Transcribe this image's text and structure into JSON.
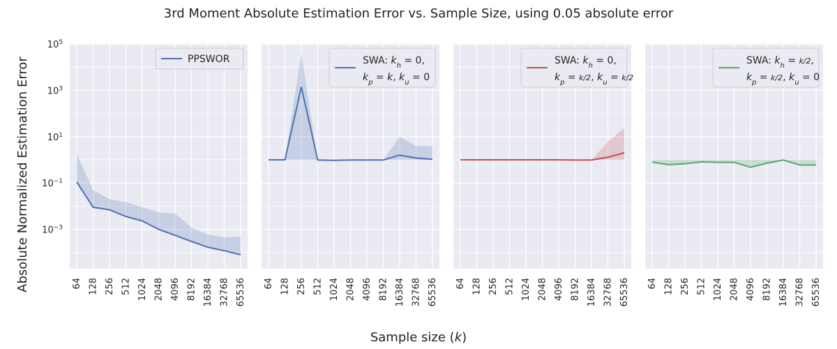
{
  "figure": {
    "title": "3rd Moment Absolute Estimation Error vs. Sample Size, using 0.05 absolute error",
    "ylabel": "Absolute Normalized Estimation Error",
    "xlabel": "Sample size (k)"
  },
  "chart_data": [
    {
      "type": "line",
      "panel": 1,
      "y_scale": "log",
      "ylim": [
        2e-05,
        100000
      ],
      "yticks": [
        "10^5",
        "10^3",
        "10^1",
        "10^-1",
        "10^-3"
      ],
      "categories": [
        "64",
        "128",
        "256",
        "512",
        "1024",
        "2048",
        "4096",
        "8192",
        "16384",
        "32768",
        "65536"
      ],
      "legend_position": "top-right",
      "series": [
        {
          "name": "PPSWOR",
          "color": "#4c72b0",
          "values": [
            0.11,
            0.009,
            0.007,
            0.0036,
            0.0023,
            0.001,
            0.00055,
            0.0003,
            0.00017,
            0.00012,
            8e-05
          ],
          "band_upper": [
            1.8,
            0.05,
            0.02,
            0.015,
            0.009,
            0.0055,
            0.0048,
            0.0012,
            0.0006,
            0.00045,
            0.0005
          ],
          "band_lower": [
            0.11,
            0.009,
            0.007,
            0.0036,
            0.0023,
            0.001,
            0.00055,
            0.0003,
            0.00017,
            0.00012,
            8e-05
          ]
        }
      ]
    },
    {
      "type": "line",
      "panel": 2,
      "y_scale": "log",
      "ylim": [
        2e-05,
        100000
      ],
      "categories": [
        "64",
        "128",
        "256",
        "512",
        "1024",
        "2048",
        "4096",
        "8192",
        "16384",
        "32768",
        "65536"
      ],
      "legend_position": "top-right",
      "series": [
        {
          "name": "SWA: k_h = 0, k_p = k, k_u = 0",
          "legend_line1": "SWA: kh = 0,",
          "legend_line2": "kp = k, ku = 0",
          "color": "#4c72b0",
          "values": [
            1.0,
            1.0,
            1400,
            0.98,
            0.95,
            0.98,
            0.98,
            0.98,
            1.6,
            1.2,
            1.05
          ],
          "band_upper": [
            1.0,
            1.0,
            40000,
            0.98,
            0.95,
            0.98,
            0.98,
            0.98,
            10,
            4,
            3.8
          ],
          "band_lower": [
            1.0,
            1.0,
            1.0,
            0.98,
            0.95,
            0.98,
            0.98,
            0.98,
            1.0,
            1.0,
            1.0
          ]
        }
      ]
    },
    {
      "type": "line",
      "panel": 3,
      "y_scale": "log",
      "ylim": [
        2e-05,
        100000
      ],
      "categories": [
        "64",
        "128",
        "256",
        "512",
        "1024",
        "2048",
        "4096",
        "8192",
        "16384",
        "32768",
        "65536"
      ],
      "legend_position": "top-right",
      "series": [
        {
          "name": "SWA: k_h = 0, k_p = k/2, k_u = k/2",
          "legend_line1": "SWA: kh = 0,",
          "legend_line2": "kp = k/2, ku = k/2",
          "color": "#c44e52",
          "values": [
            1.0,
            1.0,
            1.0,
            1.0,
            1.0,
            1.0,
            1.0,
            0.98,
            0.98,
            1.3,
            2.0
          ],
          "band_upper": [
            1.0,
            1.0,
            1.0,
            1.0,
            1.0,
            1.0,
            1.0,
            0.98,
            0.98,
            6,
            24
          ],
          "band_lower": [
            1.0,
            1.0,
            1.0,
            1.0,
            1.0,
            1.0,
            1.0,
            0.98,
            0.98,
            1.0,
            1.0
          ]
        }
      ]
    },
    {
      "type": "line",
      "panel": 4,
      "y_scale": "log",
      "ylim": [
        2e-05,
        100000
      ],
      "categories": [
        "64",
        "128",
        "256",
        "512",
        "1024",
        "2048",
        "4096",
        "8192",
        "16384",
        "32768",
        "65536"
      ],
      "legend_position": "top-right",
      "series": [
        {
          "name": "SWA: k_h = k/2, k_p = k/2, k_u = 0",
          "legend_line1": "SWA: kh = k/2,",
          "legend_line2": "kp = k/2, ku = 0",
          "color": "#55a868",
          "values": [
            0.8,
            0.62,
            0.68,
            0.82,
            0.78,
            0.78,
            0.48,
            0.72,
            0.98,
            0.6,
            0.6
          ],
          "band_upper": [
            1.0,
            1.0,
            1.0,
            1.0,
            1.0,
            1.0,
            1.0,
            1.0,
            1.0,
            1.0,
            1.0
          ],
          "band_lower": [
            0.8,
            0.62,
            0.68,
            0.82,
            0.78,
            0.78,
            0.48,
            0.72,
            0.98,
            0.6,
            0.6
          ]
        }
      ]
    }
  ]
}
